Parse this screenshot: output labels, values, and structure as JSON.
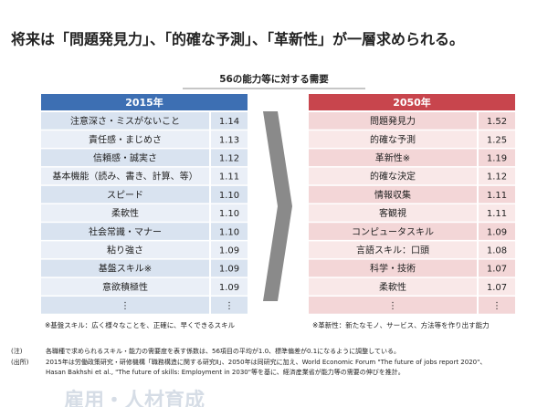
{
  "headline": "将来は「問題発見力」、「的確な予測」、「革新性」が一層求められる。",
  "subtitle": "56の能力等に対する需要",
  "tables": [
    {
      "header": "2015年",
      "rows": [
        [
          "注意深さ・ミスがないこと",
          "1.14"
        ],
        [
          "責任感・まじめさ",
          "1.13"
        ],
        [
          "信頼感・誠実さ",
          "1.12"
        ],
        [
          "基本機能（読み、書き、計算、等）",
          "1.11"
        ],
        [
          "スピード",
          "1.10"
        ],
        [
          "柔軟性",
          "1.10"
        ],
        [
          "社会常識・マナー",
          "1.10"
        ],
        [
          "粘り強さ",
          "1.09"
        ],
        [
          "基盤スキル※",
          "1.09"
        ],
        [
          "意欲積極性",
          "1.09"
        ],
        [
          "⋮",
          "⋮"
        ]
      ],
      "note": "※基盤スキル：広く様々なことを、正確に、早くできるスキル"
    },
    {
      "header": "2050年",
      "rows": [
        [
          "問題発見力",
          "1.52"
        ],
        [
          "的確な予測",
          "1.25"
        ],
        [
          "革新性※",
          "1.19"
        ],
        [
          "的確な決定",
          "1.12"
        ],
        [
          "情報収集",
          "1.11"
        ],
        [
          "客観視",
          "1.11"
        ],
        [
          "コンピュータスキル",
          "1.09"
        ],
        [
          "言語スキル：口頭",
          "1.08"
        ],
        [
          "科学・技術",
          "1.07"
        ],
        [
          "柔軟性",
          "1.07"
        ],
        [
          "⋮",
          "⋮"
        ]
      ],
      "note": "※革新性：新たなモノ、サービス、方法等を作り出す能力"
    }
  ],
  "footnotes": [
    {
      "label": "(注)",
      "text": "各職種で求められるスキル・能力の需要度を表す係数は、56項目の平均が1.0、標準偏差が0.1になるように調整している。"
    },
    {
      "label": "(出所)",
      "text": "2015年は労働政策研究・研修機構「職務構造に関する研究Ⅱ」、2050年は同研究に加え、World Economic Forum \"The future of jobs report 2020\"、",
      "text2": "Hasan Bakhshi et al., \"The future of skills: Employment in 2030\"等を基に、経済産業省が能力等の需要の伸びを推計。"
    }
  ],
  "watermark": "雇用・人材育成"
}
